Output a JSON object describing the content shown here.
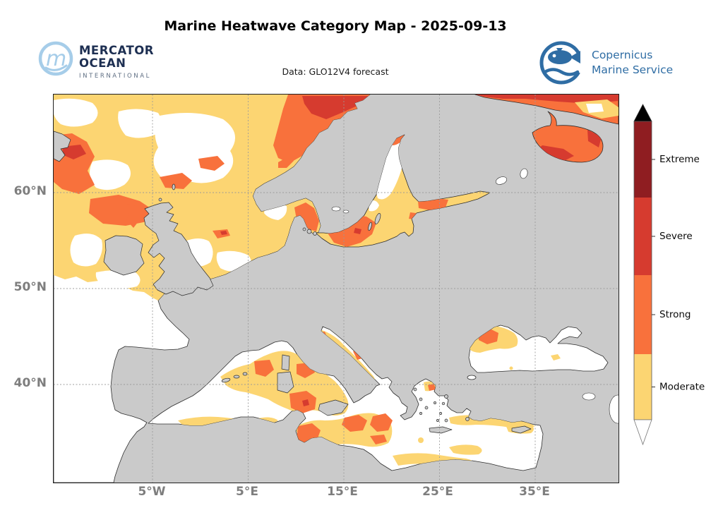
{
  "title": "Marine Heatwave Category Map - 2025-09-13",
  "subtitle": "Data: GLO12V4 forecast",
  "logos": {
    "mercator": {
      "monogram": "m",
      "line1": "MERCATOR",
      "line2": "OCEAN",
      "line3": "INTERNATIONAL"
    },
    "copernicus": {
      "line1": "Copernicus",
      "line2": "Marine Service"
    }
  },
  "map": {
    "x_ticks": [
      "5°W",
      "5°E",
      "15°E",
      "25°E",
      "35°E"
    ],
    "y_ticks": [
      "60°N",
      "50°N",
      "40°N"
    ],
    "colors": {
      "land": "#cacaca",
      "ocean": "#ffffff",
      "coastline": "#2e2e2e",
      "grid": "#9a9a9a",
      "tick_label": "#7e7e7e"
    }
  },
  "legend": {
    "categories": [
      {
        "label": "Extreme",
        "color": "#8f1d21"
      },
      {
        "label": "Severe",
        "color": "#d63b2f"
      },
      {
        "label": "Strong",
        "color": "#f8713c"
      },
      {
        "label": "Moderate",
        "color": "#fcd572"
      }
    ],
    "over_arrow_color": "#000000",
    "under_arrow_color": "#ffffff"
  }
}
